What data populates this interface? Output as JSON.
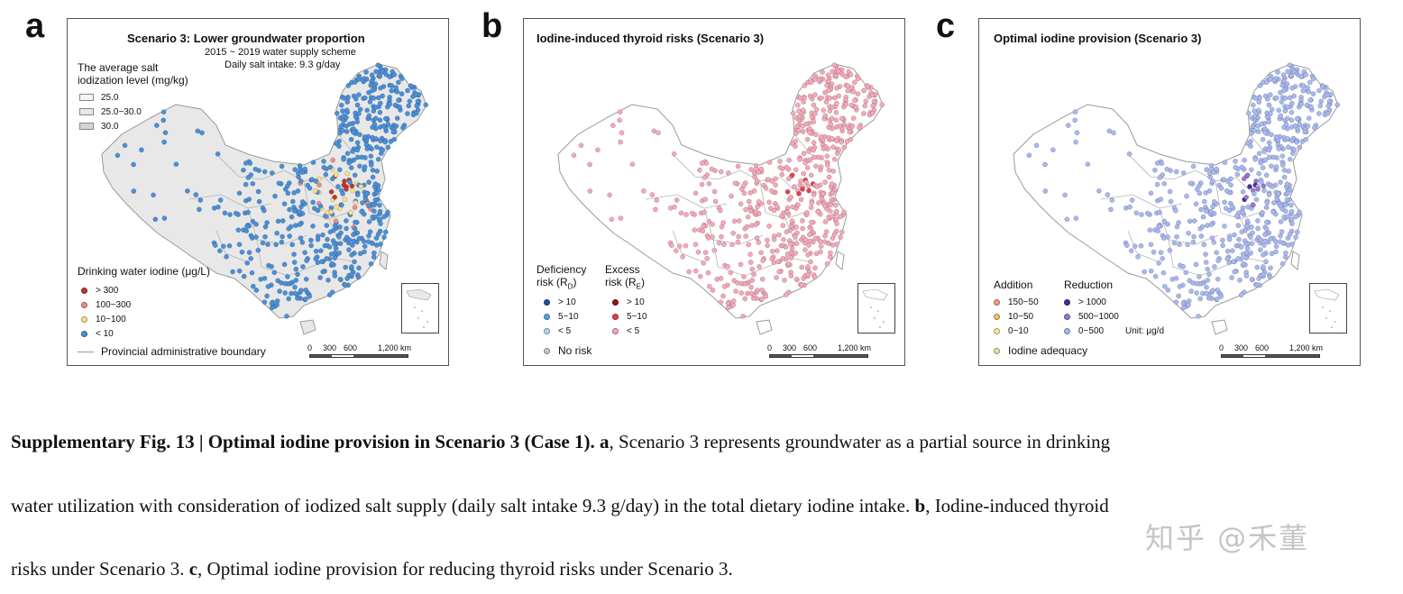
{
  "panels": [
    {
      "letter": "a",
      "title": "Scenario 3: Lower groundwater proportion",
      "subtitle1": "2015 ~ 2019 water supply scheme",
      "subtitle2": "Daily salt intake: 9.3 g/day",
      "salt_legend": {
        "title1": "The average salt",
        "title2": "iodization level (mg/kg)",
        "items": [
          "25.0",
          "25.0~30.0",
          "30.0"
        ],
        "colors": [
          "#f5f5f5",
          "#e6e6e6",
          "#d4d4d4"
        ]
      },
      "water_legend": {
        "title": "Drinking water iodine (μg/L)",
        "items": [
          {
            "label": "> 300",
            "color": "#c0392b"
          },
          {
            "label": "100~300",
            "color": "#f08a8a"
          },
          {
            "label": "10~100",
            "color": "#f7e08a"
          },
          {
            "label": "< 10",
            "color": "#4a90d9"
          }
        ]
      },
      "boundary_label": "Provincial administrative boundary",
      "scale": {
        "labels": [
          "0",
          "300",
          "600",
          "1,200 km"
        ]
      }
    },
    {
      "letter": "b",
      "title": "Iodine-induced thyroid risks (Scenario 3)",
      "deficiency": {
        "title1": "Deficiency",
        "title2": "risk (R",
        "sub": "D",
        "items": [
          {
            "label": "> 10",
            "color": "#1f4fa3"
          },
          {
            "label": "5~10",
            "color": "#5fa3e8"
          },
          {
            "label": "< 5",
            "color": "#a8dcf5"
          }
        ]
      },
      "excess": {
        "title1": "Excess",
        "title2": "risk (R",
        "sub": "E",
        "items": [
          {
            "label": "> 10",
            "color": "#8b1a1a"
          },
          {
            "label": "5~10",
            "color": "#e04050"
          },
          {
            "label": "< 5",
            "color": "#f5a8b8"
          }
        ]
      },
      "no_risk": {
        "label": "No risk",
        "color": "#c8c8c8"
      },
      "scale": {
        "labels": [
          "0",
          "300",
          "600",
          "1,200 km"
        ]
      }
    },
    {
      "letter": "c",
      "title": "Optimal iodine provision (Scenario 3)",
      "addition": {
        "title": "Addition",
        "items": [
          {
            "label": "150~50",
            "color": "#f0a080"
          },
          {
            "label": "10~50",
            "color": "#f5c070"
          },
          {
            "label": "0~10",
            "color": "#f8e8a0"
          }
        ]
      },
      "reduction": {
        "title": "Reduction",
        "items": [
          {
            "label": "> 1000",
            "color": "#4a2f8a"
          },
          {
            "label": "500~1000",
            "color": "#9a78d0"
          },
          {
            "label": "0~500",
            "color": "#a8b8f0"
          }
        ]
      },
      "unit": "Unit: μg/d",
      "adequacy": {
        "label": "Iodine adequacy",
        "color": "#d8e8a0"
      },
      "scale": {
        "labels": [
          "0",
          "300",
          "600",
          "1,200 km"
        ]
      }
    }
  ],
  "caption": {
    "bold1": "Supplementary Fig. 13 | Optimal iodine provision in Scenario 3 (Case 1).",
    "a_letter": "a",
    "a_text": ", Scenario 3 represents groundwater as a partial source in drinking",
    "line2_a": "water utilization with consideration of iodized salt supply (daily salt intake 9.3 g/day) in the total dietary iodine intake.",
    "b_letter": "b",
    "b_text": ", Iodine-induced thyroid",
    "line3_a": "risks under Scenario 3.",
    "c_letter": "c",
    "c_text": ", Optimal iodine provision for reducing thyroid risks under Scenario 3."
  },
  "watermark": "知乎 @禾董"
}
